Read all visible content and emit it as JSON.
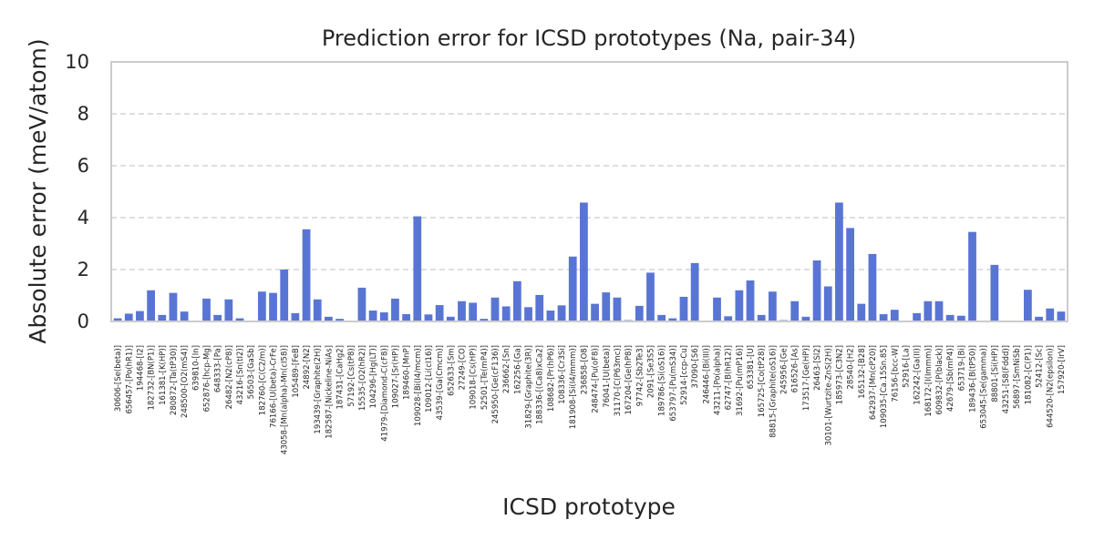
{
  "chart_data": {
    "type": "bar",
    "title": "Prediction error for ICSD prototypes (Na, pair-34)",
    "xlabel": "ICSD prototype",
    "ylabel": "Absolute error (meV/atom)",
    "ylim": [
      0,
      10
    ],
    "yticks": [
      "0",
      "2",
      "4",
      "6",
      "8",
      "10"
    ],
    "grid": "y-dashed",
    "bar_color": "#5975d4",
    "categories": [
      "30606-[Se(beta)]",
      "656457-[Po(hR1)]",
      "194468-[I2]",
      "182732-[BN(P1)]",
      "161381-[K(HP)]",
      "280872-[Ta(tP30)]",
      "248500-[O2(mS4)]",
      "639810-[In]",
      "652876-[hcp-Mg]",
      "648333-[Pa]",
      "26482-[N2(cP8)]",
      "43216-[Sn(tI2)]",
      "56503-[GaSb]",
      "182760-[C(C2/m)]",
      "76166-[U(beta)-CrFe]",
      "43058-[Mn(alpha)-Mn(cI58)]",
      "105489-[FeB]",
      "24892-[N2]",
      "193439-[Graphite(2H)]",
      "182587-[Nickeline-NiAs]",
      "187431-[CaHg2]",
      "57192-[Cs(tP8)]",
      "15535-[O2(hR2)]",
      "104296-[Hg(LT)]",
      "41979-[Diamond-C(cF8)]",
      "109027-[Sr(HP)]",
      "189460-[MnP]",
      "109028-[Bi(I4/mcm)]",
      "109012-[Li(cI16)]",
      "43539-[Ga(Cmcm)]",
      "652633-[Sm]",
      "27249-[CO]",
      "109018-[Cs(HP)]",
      "52501-[Te(mP4)]",
      "245950-[Ge(cF136)]",
      "236662-[Sn]",
      "162256-[Ga]",
      "31829-[Graphite(3R)]",
      "188336-[(Ca8)xCa2]",
      "108682-[Pr(hP6)]",
      "108336-[Cr3Si]",
      "181908-[Si(I4/mmm)]",
      "236858-[O8]",
      "248474-[Pu(oF8)]",
      "76041-[U(beta)]",
      "31170-[C(P63mc)]",
      "167204-[Ge(hP8)]",
      "97742-[Sb2Te3]",
      "2091-[Se3S5]",
      "189786-[Si(oS16)]",
      "653797-[Pu(mS34)]",
      "52914-[ccp-Cu]",
      "37090-[S6]",
      "246446-[Bi(III)]",
      "43211-[Po(alpha)]",
      "62747-[B(hR12)]",
      "31692-[Pu(mP16)]",
      "653381-[U]",
      "165725-[Co(tP28)]",
      "88815-[Graphite(oS16)]",
      "245956-[Ge]",
      "616526-[As]",
      "173517-[Ge(HP)]",
      "26463-[Sl2]",
      "30101-[Wurtzite-ZnS(2H)]",
      "185973-[C3N2]",
      "28540-[H2]",
      "165132-[B28]",
      "642937-[Mn(cP20)]",
      "109035-[Ca.15Sn.85]",
      "76156-[bcc-W]",
      "52916-[La]",
      "162242-[Ga(II)]",
      "168172-[I(Immm)]",
      "609832-[P(black)]",
      "42679-[Sb(mP4)]",
      "653719-[Bi]",
      "189436-[B(tP50)]",
      "653045-[Se(gamma)]",
      "88801-[Si(HP)]",
      "43251-[S8(Fddd)]",
      "56897-[SmNiSb]",
      "181082-[C(P1)]",
      "52412-[Sc]",
      "644520-[N2(epsilon)]",
      "157920-[IrV]"
    ],
    "values": [
      0.12,
      0.3,
      0.4,
      1.2,
      0.25,
      1.1,
      0.38,
      0.03,
      0.88,
      0.25,
      0.85,
      0.12,
      0.03,
      1.15,
      1.1,
      2.0,
      0.32,
      3.55,
      0.85,
      0.18,
      0.1,
      0.02,
      1.3,
      0.42,
      0.35,
      0.88,
      0.28,
      4.05,
      0.27,
      0.63,
      0.18,
      0.78,
      0.72,
      0.1,
      0.92,
      0.58,
      1.55,
      0.55,
      1.02,
      0.42,
      0.62,
      2.5,
      4.58,
      0.68,
      1.12,
      0.92,
      0.05,
      0.6,
      1.88,
      0.25,
      0.12,
      0.95,
      2.25,
      0.02,
      0.92,
      0.2,
      1.2,
      1.58,
      0.25,
      1.15,
      0.05,
      0.78,
      0.18,
      2.35,
      1.35,
      4.58,
      3.6,
      0.68,
      2.6,
      0.28,
      0.45,
      0.03,
      0.32,
      0.78,
      0.78,
      0.25,
      0.22,
      3.45,
      0.02,
      2.18,
      0.02,
      0.02,
      1.22,
      0.18,
      0.5,
      0.38
    ]
  }
}
